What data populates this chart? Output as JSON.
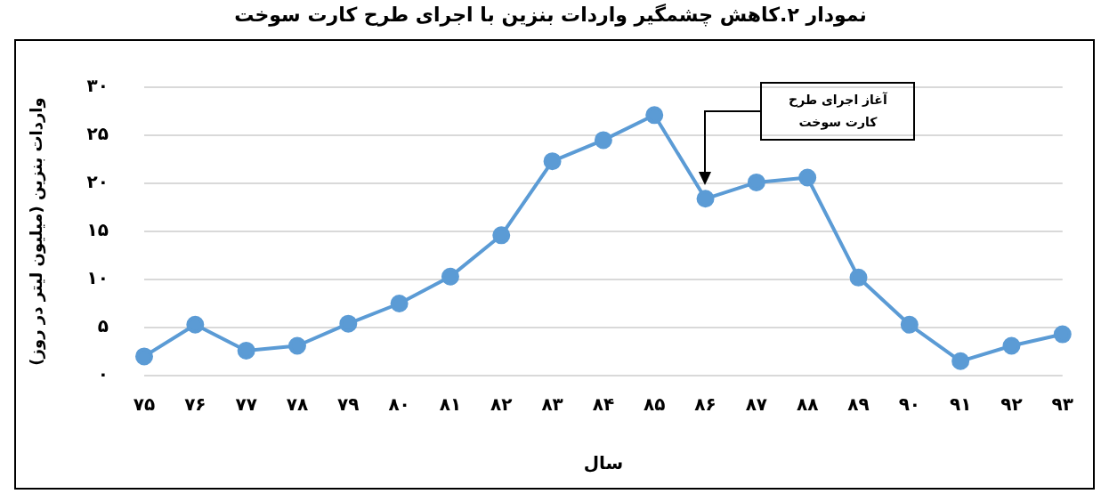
{
  "chart_data": {
    "type": "line",
    "title": "نمودار ۲.کاهش چشمگیر واردات بنزین با اجرای طرح کارت سوخت",
    "xlabel": "سال",
    "ylabel": "واردات بنزین (میلیون لیتر در روز)",
    "categories": [
      "۷۵",
      "۷۶",
      "۷۷",
      "۷۸",
      "۷۹",
      "۸۰",
      "۸۱",
      "۸۲",
      "۸۳",
      "۸۴",
      "۸۵",
      "۸۶",
      "۸۷",
      "۸۸",
      "۸۹",
      "۹۰",
      "۹۱",
      "۹۲",
      "۹۳"
    ],
    "series": [
      {
        "color": "#5b9bd5",
        "values": [
          2.0,
          5.3,
          2.6,
          3.1,
          5.4,
          7.5,
          10.3,
          14.6,
          22.3,
          24.5,
          27.1,
          18.4,
          20.1,
          20.6,
          10.2,
          5.3,
          1.5,
          3.1,
          4.3
        ]
      }
    ],
    "ylim": [
      0,
      30
    ],
    "yticks": [
      {
        "value": 0,
        "label": "۰"
      },
      {
        "value": 5,
        "label": "۵"
      },
      {
        "value": 10,
        "label": "۱۰"
      },
      {
        "value": 15,
        "label": "۱۵"
      },
      {
        "value": 20,
        "label": "۲۰"
      },
      {
        "value": 25,
        "label": "۲۵"
      },
      {
        "value": 30,
        "label": "۳۰"
      }
    ],
    "annotations": [
      "آغاز اجرای طرح کارت سوخت"
    ],
    "grid": "y",
    "legend": false,
    "marker": "circle",
    "line_style": "solid"
  }
}
